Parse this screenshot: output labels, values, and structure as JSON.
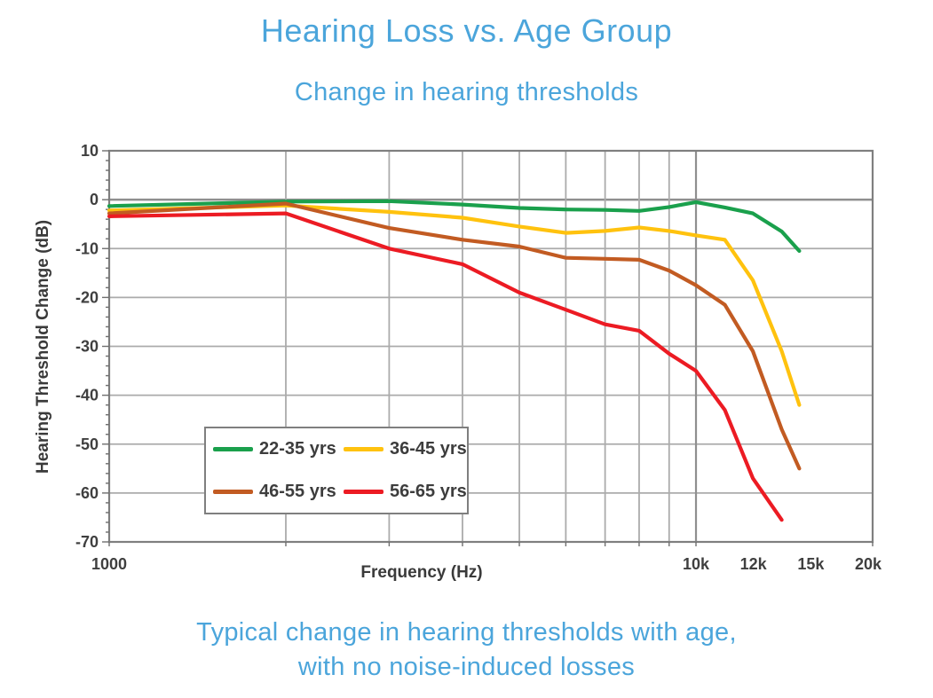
{
  "header": {
    "title": "Hearing Loss vs. Age Group",
    "subtitle": "Change in hearing thresholds",
    "accent_color": "#4BA5DB"
  },
  "footer": {
    "lines": [
      "Typical change in hearing thresholds with age,",
      "with no noise-induced losses"
    ]
  },
  "chart_data": {
    "type": "line",
    "title": "Hearing Loss vs. Age Group",
    "xlabel": "Frequency (Hz)",
    "ylabel": "Hearing Threshold Change (dB)",
    "x_scale": "log",
    "x_range": [
      1000,
      20000
    ],
    "ylim": [
      -70,
      10
    ],
    "y_ticks": [
      10,
      0,
      -10,
      -20,
      -30,
      -40,
      -50,
      -60,
      -70
    ],
    "x_tick_labels": [
      "1000",
      "10k",
      "12k",
      "15k",
      "20k"
    ],
    "grid_frequencies": [
      2000,
      3000,
      4000,
      5000,
      6000,
      7000,
      8000,
      9000,
      10000
    ],
    "grid": true,
    "legend_position": "inside-bottom-left",
    "series": [
      {
        "name": "22-35 yrs",
        "color": "#1AA04C",
        "points": [
          [
            1000,
            -1.3
          ],
          [
            2000,
            -0.4
          ],
          [
            3000,
            -0.3
          ],
          [
            4000,
            -1
          ],
          [
            5000,
            -1.7
          ],
          [
            6000,
            -2
          ],
          [
            7000,
            -2.1
          ],
          [
            8000,
            -2.3
          ],
          [
            9000,
            -1.5
          ],
          [
            10000,
            -0.5
          ],
          [
            11200,
            -1.6
          ],
          [
            12500,
            -2.8
          ],
          [
            14000,
            -6.5
          ],
          [
            15000,
            -10.5
          ]
        ]
      },
      {
        "name": "36-45 yrs",
        "color": "#FFC20E",
        "points": [
          [
            1000,
            -2.2
          ],
          [
            2000,
            -1.2
          ],
          [
            3000,
            -2.5
          ],
          [
            4000,
            -3.7
          ],
          [
            5000,
            -5.5
          ],
          [
            6000,
            -6.8
          ],
          [
            7000,
            -6.4
          ],
          [
            8000,
            -5.7
          ],
          [
            9000,
            -6.4
          ],
          [
            10000,
            -7.3
          ],
          [
            11200,
            -8.2
          ],
          [
            12500,
            -16.5
          ],
          [
            14000,
            -31
          ],
          [
            15000,
            -42
          ]
        ]
      },
      {
        "name": "46-55 yrs",
        "color": "#C25B22",
        "points": [
          [
            1000,
            -2.8
          ],
          [
            2000,
            -0.8
          ],
          [
            3000,
            -5.8
          ],
          [
            4000,
            -8.2
          ],
          [
            5000,
            -9.6
          ],
          [
            6000,
            -11.9
          ],
          [
            7000,
            -12.1
          ],
          [
            8000,
            -12.3
          ],
          [
            9000,
            -14.5
          ],
          [
            10000,
            -17.5
          ],
          [
            11200,
            -21.5
          ],
          [
            12500,
            -31
          ],
          [
            14000,
            -47
          ],
          [
            15000,
            -55
          ]
        ]
      },
      {
        "name": "56-65 yrs",
        "color": "#EC1B23",
        "points": [
          [
            1000,
            -3.4
          ],
          [
            2000,
            -2.8
          ],
          [
            3000,
            -10
          ],
          [
            4000,
            -13.2
          ],
          [
            5000,
            -19
          ],
          [
            6000,
            -22.5
          ],
          [
            7000,
            -25.5
          ],
          [
            8000,
            -26.8
          ],
          [
            9000,
            -31.5
          ],
          [
            10000,
            -35
          ],
          [
            11200,
            -43
          ],
          [
            12500,
            -57
          ],
          [
            14000,
            -65.5
          ]
        ]
      }
    ]
  }
}
